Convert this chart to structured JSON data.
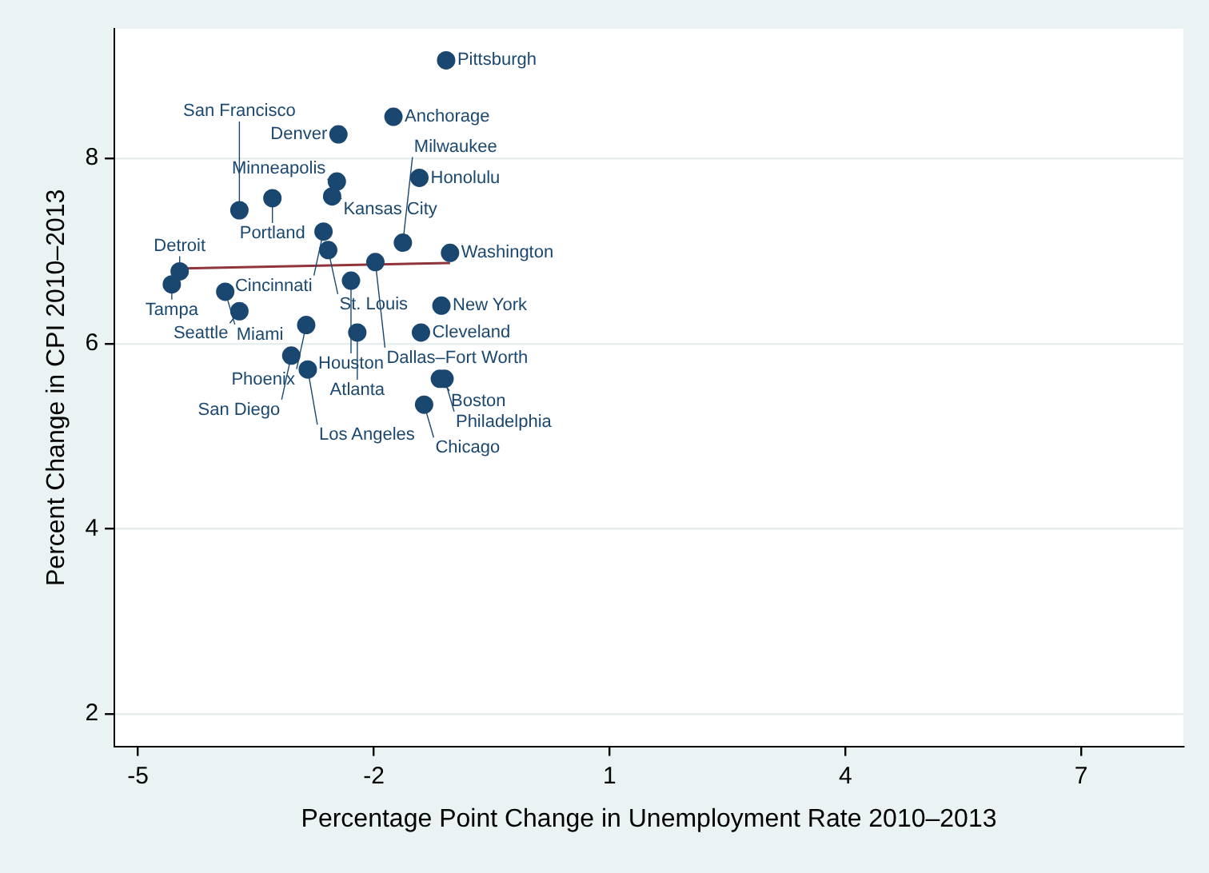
{
  "chart_data": {
    "type": "scatter",
    "xlabel": "Percentage Point Change in Unemployment Rate 2010–2013",
    "ylabel": "Percent Change in CPI 2010–2013",
    "xlim": [
      -5.3,
      8.3
    ],
    "ylim": [
      1.65,
      9.4
    ],
    "xticks": [
      -5,
      -2,
      1,
      4,
      7
    ],
    "yticks": [
      2,
      4,
      6,
      8
    ],
    "grid": "y",
    "legend": false,
    "marker": "circle",
    "series": [
      {
        "type": "scatter",
        "color": "#1a476f",
        "x": [
          -1.08,
          -1.75,
          -2.45,
          -1.42,
          -2.47,
          -2.53,
          -3.29,
          -3.71,
          -2.64,
          -1.63,
          -2.58,
          -1.03,
          -1.98,
          -4.47,
          -4.57,
          -3.89,
          -2.29,
          -3.71,
          -1.14,
          -2.86,
          -2.21,
          -1.4,
          -3.05,
          -2.84,
          -1.16,
          -1.1,
          -1.36
        ],
        "values": [
          9.06,
          8.45,
          8.26,
          7.79,
          7.75,
          7.59,
          7.57,
          7.44,
          7.21,
          7.09,
          7.01,
          6.98,
          6.88,
          6.78,
          6.64,
          6.56,
          6.68,
          6.35,
          6.41,
          6.2,
          6.12,
          6.12,
          5.87,
          5.72,
          5.62,
          5.62,
          5.34
        ]
      },
      {
        "type": "line",
        "color": "#90353b",
        "x": [
          -4.57,
          -1.03
        ],
        "values": [
          6.81,
          6.87
        ],
        "marker": "none"
      }
    ],
    "annotations": [
      {
        "text": "Pittsburgh",
        "x": -1.08,
        "y": 9.06
      },
      {
        "text": "Anchorage",
        "x": -1.75,
        "y": 8.45
      },
      {
        "text": "Denver",
        "x": -2.45,
        "y": 8.26
      },
      {
        "text": "Honolulu",
        "x": -1.42,
        "y": 7.79
      },
      {
        "text": "Minneapolis",
        "x": -2.47,
        "y": 7.75
      },
      {
        "text": "Kansas City",
        "x": -2.53,
        "y": 7.59
      },
      {
        "text": "Portland",
        "x": -3.29,
        "y": 7.57
      },
      {
        "text": "San Francisco",
        "x": -3.71,
        "y": 7.44
      },
      {
        "text": "Cincinnati",
        "x": -2.64,
        "y": 7.21
      },
      {
        "text": "Milwaukee",
        "x": -1.63,
        "y": 7.09
      },
      {
        "text": "St. Louis",
        "x": -2.58,
        "y": 7.01
      },
      {
        "text": "Washington",
        "x": -1.03,
        "y": 6.98
      },
      {
        "text": "Dallas–Fort Worth",
        "x": -1.98,
        "y": 6.88
      },
      {
        "text": "Detroit",
        "x": -4.47,
        "y": 6.78
      },
      {
        "text": "Tampa",
        "x": -4.57,
        "y": 6.64
      },
      {
        "text": "Miami",
        "x": -3.89,
        "y": 6.56
      },
      {
        "text": "Houston",
        "x": -2.29,
        "y": 6.68
      },
      {
        "text": "Seattle",
        "x": -3.71,
        "y": 6.35
      },
      {
        "text": "New York",
        "x": -1.14,
        "y": 6.41
      },
      {
        "text": "Phoenix",
        "x": -2.86,
        "y": 6.2
      },
      {
        "text": "Atlanta",
        "x": -2.21,
        "y": 6.12
      },
      {
        "text": "Cleveland",
        "x": -1.4,
        "y": 6.12
      },
      {
        "text": "San Diego",
        "x": -3.05,
        "y": 5.87
      },
      {
        "text": "Los Angeles",
        "x": -2.84,
        "y": 5.72
      },
      {
        "text": "Boston",
        "x": -1.16,
        "y": 5.62
      },
      {
        "text": "Philadelphia",
        "x": -1.1,
        "y": 5.62
      },
      {
        "text": "Chicago",
        "x": -1.36,
        "y": 5.34
      }
    ]
  }
}
